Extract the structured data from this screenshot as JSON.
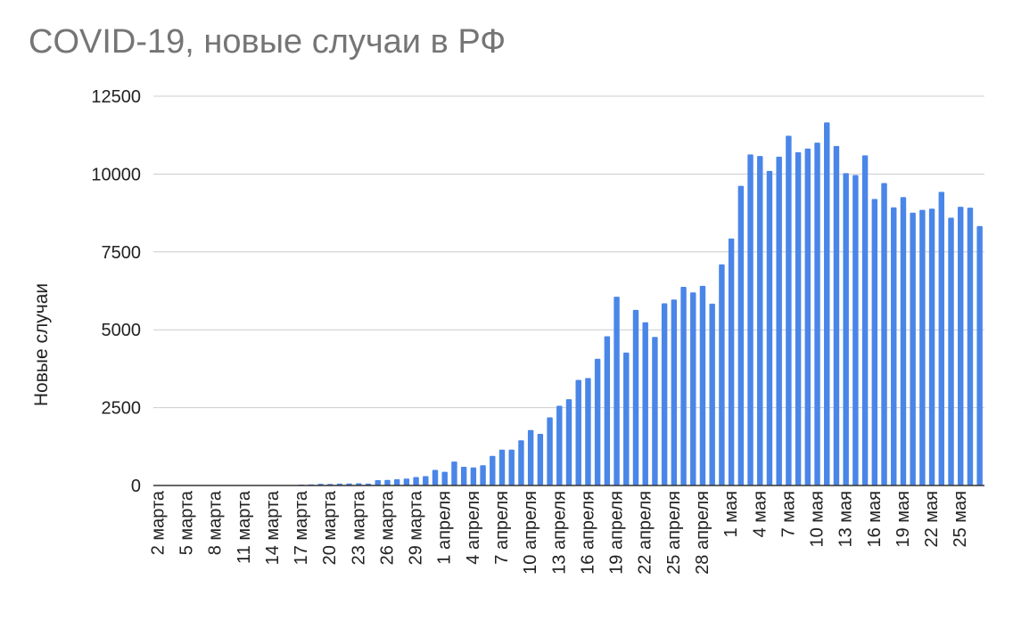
{
  "chart_data": {
    "type": "bar",
    "title": "COVID-19, новые случаи в РФ",
    "xlabel": "",
    "ylabel": "Новые случаи",
    "ylim": [
      0,
      12500
    ],
    "yticks": [
      "0",
      "2500",
      "5000",
      "7500",
      "10000",
      "12500"
    ],
    "grid": true,
    "bar_color": "#4a86e8",
    "categories": [
      "2 марта",
      "3 марта",
      "4 марта",
      "5 марта",
      "6 марта",
      "7 марта",
      "8 марта",
      "9 марта",
      "10 марта",
      "11 марта",
      "12 марта",
      "13 марта",
      "14 марта",
      "15 марта",
      "16 марта",
      "17 марта",
      "18 марта",
      "19 марта",
      "20 марта",
      "21 марта",
      "22 марта",
      "23 марта",
      "24 марта",
      "25 марта",
      "26 марта",
      "27 марта",
      "28 марта",
      "29 марта",
      "30 марта",
      "31 марта",
      "1 апреля",
      "2 апреля",
      "3 апреля",
      "4 апреля",
      "5 апреля",
      "6 апреля",
      "7 апреля",
      "8 апреля",
      "9 апреля",
      "10 апреля",
      "11 апреля",
      "12 апреля",
      "13 апреля",
      "14 апреля",
      "15 апреля",
      "16 апреля",
      "17 апреля",
      "18 апреля",
      "19 апреля",
      "20 апреля",
      "21 апреля",
      "22 апреля",
      "23 апреля",
      "24 апреля",
      "25 апреля",
      "26 апреля",
      "27 апреля",
      "28 апреля",
      "29 апреля",
      "30 апреля",
      "1 мая",
      "2 мая",
      "3 мая",
      "4 мая",
      "5 мая",
      "6 мая",
      "7 мая",
      "8 мая",
      "9 мая",
      "10 мая",
      "11 мая",
      "12 мая",
      "13 мая",
      "14 мая",
      "15 мая",
      "16 мая",
      "17 мая",
      "18 мая",
      "19 мая",
      "20 мая",
      "21 мая",
      "22 мая",
      "23 мая",
      "24 мая",
      "25 мая",
      "26 мая",
      "27 мая"
    ],
    "tick_labels": [
      "2 марта",
      "5 марта",
      "8 марта",
      "11 марта",
      "14 марта",
      "17 марта",
      "20 марта",
      "23 марта",
      "26 марта",
      "29 марта",
      "1 апреля",
      "4 апреля",
      "7 апреля",
      "10 апреля",
      "13 апреля",
      "16 апреля",
      "19 апреля",
      "22 апреля",
      "25 апреля",
      "28 апреля",
      "1 мая",
      "4 мая",
      "7 мая",
      "10 мая",
      "13 мая",
      "16 мая",
      "19 мая",
      "22 мая",
      "25 мая"
    ],
    "values": [
      0,
      0,
      0,
      0,
      0,
      0,
      0,
      0,
      0,
      0,
      0,
      0,
      0,
      0,
      0,
      30,
      35,
      55,
      50,
      60,
      65,
      70,
      60,
      170,
      180,
      200,
      220,
      270,
      300,
      500,
      440,
      770,
      600,
      580,
      650,
      950,
      1150,
      1150,
      1450,
      1780,
      1660,
      2190,
      2560,
      2770,
      3390,
      3450,
      4070,
      4790,
      6060,
      4270,
      5640,
      5240,
      4770,
      5850,
      5970,
      6380,
      6200,
      6410,
      5840,
      7100,
      7930,
      9620,
      10630,
      10580,
      10100,
      10560,
      11230,
      10700,
      10820,
      11010,
      11660,
      10900,
      10030,
      9970,
      10600,
      9200,
      9710,
      8930,
      9260,
      8760,
      8850,
      8890,
      9430,
      8600,
      8950,
      8920,
      8330
    ]
  }
}
